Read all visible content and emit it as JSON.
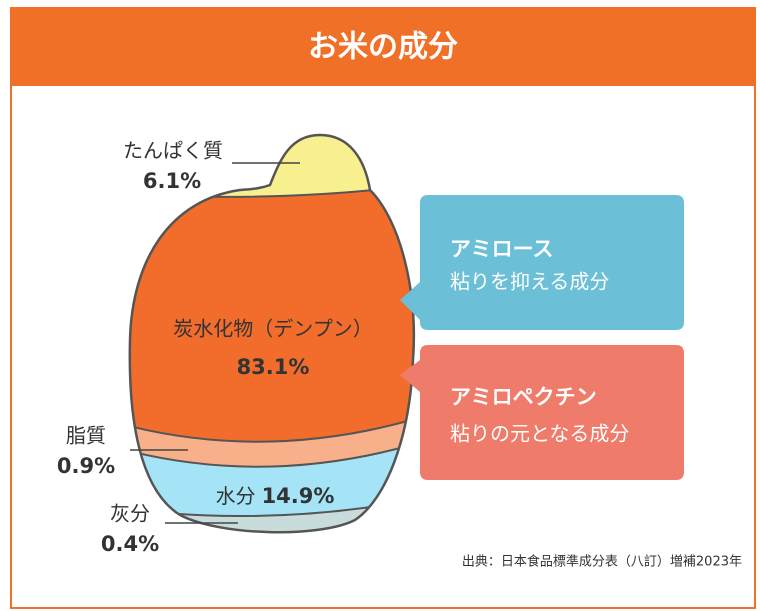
{
  "header": {
    "title": "お米の成分"
  },
  "components": [
    {
      "label": "たんぱく質",
      "percent": "6.1%"
    },
    {
      "label": "炭水化物（デンプン）",
      "percent": "83.1%"
    },
    {
      "label": "脂質",
      "percent": "0.9%"
    },
    {
      "label": "水分",
      "percent": "14.9%"
    },
    {
      "label": "灰分",
      "percent": "0.4%"
    }
  ],
  "callouts": [
    {
      "title": "アミロース",
      "text": "粘りを抑える成分"
    },
    {
      "title": "アミロペクチン",
      "text": "粘りの元となる成分"
    }
  ],
  "source": "出典：日本食品標準成分表（八訂）増補2023年"
}
